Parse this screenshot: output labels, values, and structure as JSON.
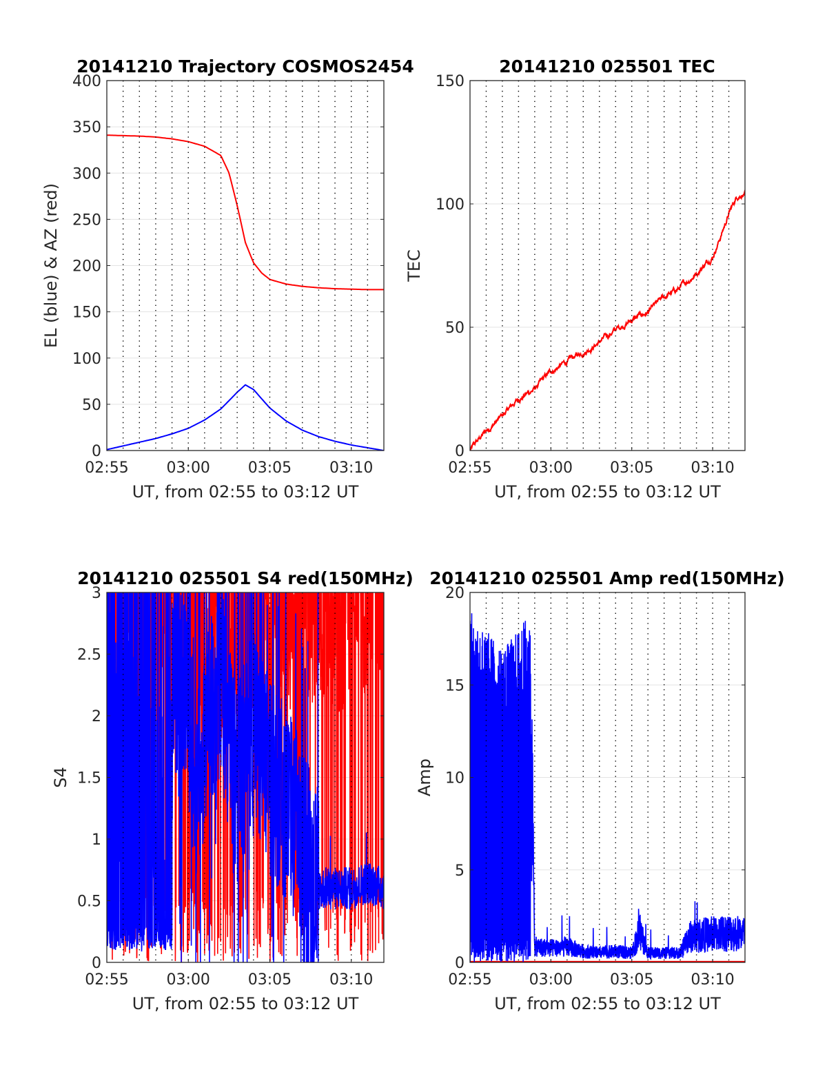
{
  "chart_data": [
    {
      "type": "line",
      "title": "20141210 Trajectory COSMOS2454",
      "xlabel": "UT, from 02:55 to 03:12 UT",
      "ylabel": "EL (blue) & AZ (red)",
      "xlim": [
        "02:55",
        "03:12"
      ],
      "ylim": [
        0,
        400
      ],
      "xticks": [
        "02:55",
        "03:00",
        "03:05",
        "03:10"
      ],
      "yticks": [
        0,
        50,
        100,
        150,
        200,
        250,
        300,
        350,
        400
      ],
      "grid": "dotted vertical every 1 min, solid horizontal",
      "series": [
        {
          "color": "#ff0000",
          "x": [
            "02:55",
            "02:56",
            "02:57",
            "02:58",
            "02:59",
            "03:00",
            "03:01",
            "03:02",
            "03:02:30",
            "03:03",
            "03:03:30",
            "03:04",
            "03:04:30",
            "03:05",
            "03:06",
            "03:07",
            "03:08",
            "03:09",
            "03:10",
            "03:11",
            "03:12"
          ],
          "y": [
            341,
            340.5,
            340,
            339,
            337,
            334,
            329,
            319,
            300,
            265,
            225,
            203,
            192,
            185,
            180,
            177.5,
            176,
            175,
            174.5,
            174,
            174
          ]
        },
        {
          "color": "#0000ff",
          "x": [
            "02:55",
            "02:56",
            "02:57",
            "02:58",
            "02:59",
            "03:00",
            "03:01",
            "03:02",
            "03:03",
            "03:03:30",
            "03:04",
            "03:05",
            "03:06",
            "03:07",
            "03:08",
            "03:09",
            "03:10",
            "03:11",
            "03:12"
          ],
          "y": [
            1,
            5,
            9,
            13,
            18,
            24,
            33,
            45,
            63,
            71,
            66,
            46,
            32,
            22,
            15,
            10,
            6,
            3,
            0
          ]
        }
      ]
    },
    {
      "type": "line",
      "title": "20141210 025501 TEC",
      "xlabel": "UT, from 02:55 to 03:12 UT",
      "ylabel": "TEC",
      "xlim": [
        "02:55",
        "03:12"
      ],
      "ylim": [
        0,
        150
      ],
      "xticks": [
        "02:55",
        "03:00",
        "03:05",
        "03:10"
      ],
      "yticks": [
        0,
        50,
        100,
        150
      ],
      "grid": "dotted vertical every 1 min, solid horizontal",
      "series": [
        {
          "color": "#ff0000",
          "x": [
            "02:55",
            "02:56",
            "02:57",
            "02:58",
            "02:59",
            "03:00",
            "03:01",
            "03:02",
            "03:03",
            "03:04",
            "03:05",
            "03:06",
            "03:07",
            "03:08",
            "03:09",
            "03:10",
            "03:10:30",
            "03:11",
            "03:11:30",
            "03:12"
          ],
          "y": [
            0,
            8,
            14,
            21,
            25,
            32,
            36,
            40,
            44,
            49,
            53,
            56,
            62,
            66,
            72,
            79,
            87,
            96,
            103,
            105
          ]
        }
      ]
    },
    {
      "type": "line",
      "title": "20141210 025501 S4 red(150MHz)",
      "xlabel": "UT, from 02:55 to 03:12 UT",
      "ylabel": "S4",
      "xlim": [
        "02:55",
        "03:12"
      ],
      "ylim": [
        0,
        3
      ],
      "xticks": [
        "02:55",
        "03:00",
        "03:05",
        "03:10"
      ],
      "yticks": [
        0,
        0.5,
        1,
        1.5,
        2,
        2.5,
        3
      ],
      "grid": "dotted vertical every 1 min, solid horizontal",
      "series": [
        {
          "color": "#ff0000",
          "note_level": "noisy, mostly at 3 with frequent drops to 0",
          "x": [
            "02:55",
            "02:56",
            "02:57",
            "02:58",
            "02:59",
            "03:00",
            "03:01",
            "03:02",
            "03:03",
            "03:04",
            "03:05",
            "03:06",
            "03:07",
            "03:08",
            "03:09",
            "03:10",
            "03:11",
            "03:12"
          ],
          "y": [
            3,
            2.8,
            2.7,
            2.9,
            2.8,
            2.6,
            2.3,
            2.5,
            2.4,
            2.7,
            2.5,
            2.8,
            2.6,
            2.9,
            2.7,
            2.8,
            2.9,
            2.9
          ]
        },
        {
          "color": "#0000ff",
          "x": [
            "02:55",
            "02:55:30",
            "02:56",
            "02:57",
            "02:58",
            "02:59",
            "03:00",
            "03:00:30",
            "03:01",
            "03:02",
            "03:03",
            "03:04",
            "03:05",
            "03:06",
            "03:07",
            "03:08",
            "03:09",
            "03:10",
            "03:11",
            "03:12"
          ],
          "y": [
            0.2,
            2.5,
            0.2,
            0.15,
            0.2,
            2.4,
            2.1,
            1.4,
            1.8,
            2.3,
            1.4,
            2.0,
            1.5,
            1.3,
            1.0,
            0.6,
            0.6,
            0.6,
            0.65,
            0.6
          ]
        }
      ]
    },
    {
      "type": "line",
      "title": "20141210 025501 Amp red(150MHz)",
      "xlabel": "UT, from 02:55 to 03:12 UT",
      "ylabel": "Amp",
      "xlim": [
        "02:55",
        "03:12"
      ],
      "ylim": [
        0,
        20
      ],
      "xticks": [
        "02:55",
        "03:00",
        "03:05",
        "03:10"
      ],
      "yticks": [
        0,
        5,
        10,
        15,
        20
      ],
      "grid": "dotted vertical every 1 min, solid horizontal",
      "series": [
        {
          "color": "#ff0000",
          "x": [
            "02:55",
            "03:12"
          ],
          "y": [
            0.1,
            0.1
          ]
        },
        {
          "color": "#0000ff",
          "x": [
            "02:55",
            "02:56",
            "02:57",
            "02:58",
            "02:58:45",
            "02:59",
            "03:00",
            "03:01",
            "03:02",
            "03:03",
            "03:04",
            "03:05",
            "03:05:30",
            "03:06",
            "03:07",
            "03:08",
            "03:08:30",
            "03:09",
            "03:10",
            "03:11",
            "03:12"
          ],
          "y": [
            15,
            14,
            13,
            14,
            15,
            1.0,
            0.9,
            1.0,
            0.7,
            0.6,
            0.7,
            0.6,
            2.0,
            0.6,
            0.6,
            0.6,
            1.6,
            1.7,
            1.8,
            1.9,
            1.8
          ]
        }
      ]
    }
  ]
}
